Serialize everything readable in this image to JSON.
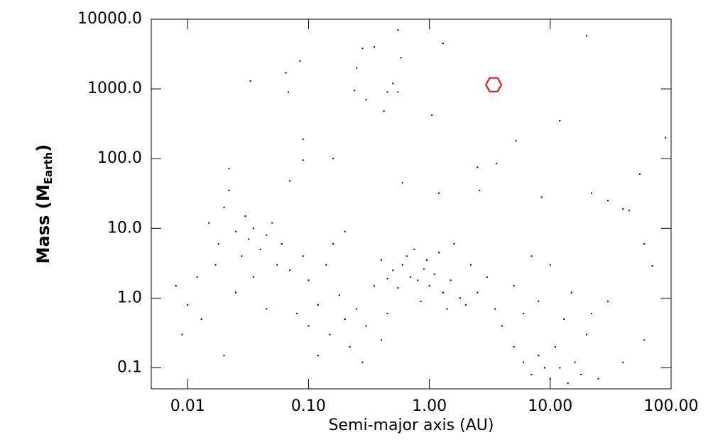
{
  "chart_data": {
    "type": "scatter",
    "xlabel": "Semi-major axis (AU)",
    "ylabel": {
      "text": "Mass (M",
      "subscript": "Earth",
      "suffix": ")"
    },
    "xscale": "log",
    "yscale": "log",
    "xlim": [
      0.005,
      100
    ],
    "ylim": [
      0.05,
      10000
    ],
    "xticks": [
      0.01,
      {
        "value": 0.1,
        "label": "0.10"
      },
      {
        "value": 1,
        "label": "1.00"
      },
      {
        "value": 10,
        "label": "10.00"
      },
      {
        "value": 100,
        "label": "100.00"
      }
    ],
    "yticks": [
      {
        "value": 0.1,
        "label": "0.1"
      },
      {
        "value": 1,
        "label": "1.0"
      },
      {
        "value": 10,
        "label": "10.0"
      },
      {
        "value": 100,
        "label": "100.0"
      },
      {
        "value": 1000,
        "label": "1000.0"
      },
      {
        "value": 10000,
        "label": "10000.0"
      }
    ],
    "series": [
      {
        "color": "#000000",
        "marker": "dot",
        "x": [
          0.033,
          0.065,
          0.068,
          0.085,
          0.09,
          0.09,
          0.16,
          0.25,
          0.24,
          0.28,
          0.35,
          0.42,
          0.45,
          0.5,
          0.55,
          0.58,
          0.6,
          0.3,
          1.3,
          1.05,
          2.5,
          3.6,
          5.2,
          12,
          20,
          8.5,
          2.6,
          1.2,
          22,
          0.55,
          0.022,
          0.07,
          40,
          45,
          55,
          60,
          90,
          70,
          30,
          0.015,
          0.018,
          0.02,
          0.022,
          0.025,
          0.028,
          0.03,
          0.032,
          0.035,
          0.04,
          0.045,
          0.05,
          0.055,
          0.06,
          0.017,
          0.012,
          0.01,
          0.008,
          0.009,
          0.013,
          0.02,
          0.025,
          0.035,
          0.045,
          0.1,
          0.12,
          0.15,
          0.18,
          0.2,
          0.22,
          0.25,
          0.28,
          0.3,
          0.35,
          0.4,
          0.45,
          0.12,
          0.08,
          0.07,
          0.09,
          0.14,
          0.16,
          0.2,
          0.1,
          0.5,
          0.6,
          0.7,
          0.8,
          0.9,
          1,
          1.1,
          1.3,
          1.5,
          1.8,
          2,
          2.5,
          0.65,
          0.75,
          0.95,
          1.2,
          0.55,
          0.85,
          1.4,
          3,
          2.2,
          0.4,
          0.45,
          1.6,
          4,
          5,
          6,
          7,
          8,
          9,
          10,
          11,
          12,
          14,
          16,
          18,
          20,
          6,
          8,
          3.5,
          13,
          25,
          5,
          15,
          22,
          10,
          7,
          30,
          40,
          60
        ],
        "values": [
          1300,
          1700,
          900,
          2500,
          190,
          95,
          100,
          2000,
          950,
          3800,
          4000,
          480,
          900,
          1200,
          900,
          2800,
          45,
          700,
          4500,
          420,
          75,
          85,
          180,
          350,
          5800,
          28,
          35,
          32,
          32,
          7000,
          72,
          48,
          19,
          18,
          60,
          6,
          200,
          2.9,
          25,
          12,
          6,
          20,
          35,
          9,
          4,
          15,
          7,
          10,
          5,
          8,
          12,
          3,
          6,
          3,
          2,
          0.8,
          1.5,
          0.3,
          0.5,
          0.15,
          1.2,
          2,
          0.7,
          0.4,
          0.8,
          0.3,
          1.1,
          0.5,
          0.2,
          0.7,
          0.12,
          0.4,
          1.5,
          0.25,
          0.6,
          0.15,
          0.6,
          2.5,
          4,
          3,
          6,
          9,
          1.8,
          2.5,
          3,
          2,
          1.8,
          2.6,
          1.5,
          2.2,
          1.2,
          1.8,
          1,
          0.8,
          1.2,
          4,
          5,
          3.5,
          4.5,
          1.4,
          0.9,
          0.7,
          2,
          3,
          3.5,
          1.9,
          6,
          0.4,
          0.2,
          0.12,
          0.08,
          0.15,
          0.1,
          0.07,
          0.2,
          0.1,
          0.06,
          0.12,
          0.08,
          0.3,
          0.6,
          0.9,
          0.7,
          0.5,
          0.07,
          1.5,
          1.2,
          0.6,
          3,
          4,
          0.9,
          0.12,
          0.25
        ]
      },
      {
        "color": "#ff0000",
        "marker": "hexagon",
        "x": [
          3.4
        ],
        "values": [
          1150
        ]
      }
    ]
  }
}
